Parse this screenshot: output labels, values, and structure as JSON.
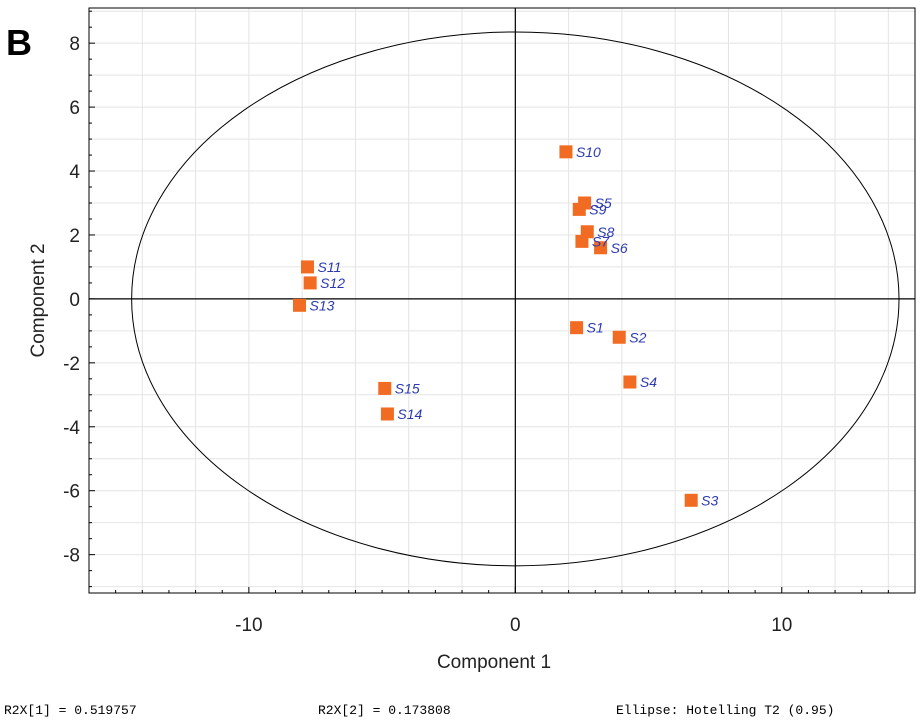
{
  "panel_label": "B",
  "footer": {
    "r2x1": "R2X[1] = 0.519757",
    "r2x2": "R2X[2] = 0.173808",
    "ellipse": "Ellipse: Hotelling T2 (0.95)"
  },
  "colors": {
    "marker": "#f26b22",
    "point_label": "#2b3ab0",
    "grid": "#e4e4e4",
    "axis": "#000000"
  },
  "chart_data": {
    "type": "scatter",
    "xlabel": "Component 1",
    "ylabel": "Component 2",
    "xlim": [
      -16,
      15
    ],
    "ylim": [
      -9.2,
      9.1
    ],
    "x_ticks": [
      -10,
      0,
      10
    ],
    "x_tick_labels": [
      "-10",
      "0",
      "10"
    ],
    "y_ticks": [
      -8,
      -6,
      -4,
      -2,
      0,
      2,
      4,
      6,
      8
    ],
    "y_tick_labels": [
      "-8",
      "-6",
      "-4",
      "-2",
      "0",
      "2",
      "4",
      "6",
      "8"
    ],
    "grid": true,
    "ellipse": {
      "rx": 14.4,
      "ry": 8.35
    },
    "points": [
      {
        "label": "S1",
        "x": 2.3,
        "y": -0.9
      },
      {
        "label": "S2",
        "x": 3.9,
        "y": -1.2
      },
      {
        "label": "S3",
        "x": 6.6,
        "y": -6.3
      },
      {
        "label": "S4",
        "x": 4.3,
        "y": -2.6
      },
      {
        "label": "S5",
        "x": 2.6,
        "y": 3.0
      },
      {
        "label": "S6",
        "x": 3.2,
        "y": 1.6
      },
      {
        "label": "S7",
        "x": 2.5,
        "y": 1.8
      },
      {
        "label": "S8",
        "x": 2.7,
        "y": 2.1
      },
      {
        "label": "S9",
        "x": 2.4,
        "y": 2.8
      },
      {
        "label": "S10",
        "x": 1.9,
        "y": 4.6
      },
      {
        "label": "S11",
        "x": -7.8,
        "y": 1.0
      },
      {
        "label": "S12",
        "x": -7.7,
        "y": 0.5
      },
      {
        "label": "S13",
        "x": -8.1,
        "y": -0.2
      },
      {
        "label": "S14",
        "x": -4.8,
        "y": -3.6
      },
      {
        "label": "S15",
        "x": -4.9,
        "y": -2.8
      }
    ]
  }
}
